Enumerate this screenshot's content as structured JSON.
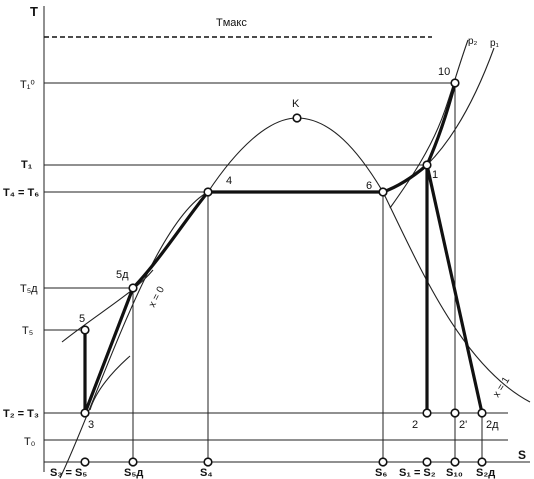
{
  "axes": {
    "y_label": "T",
    "x_label": "S",
    "t_max_label": "Tмакс"
  },
  "t_levels": {
    "t1_0": "T₁⁰",
    "t1": "T₁",
    "t4_t6": "T₄ = T₆",
    "t5d": "T₅д",
    "t5": "T₅",
    "t2_t3": "T₂ = T₃",
    "t0": "T₀"
  },
  "s_labels": {
    "s3_s5": "S₃ = S₅",
    "s5d": "S₅д",
    "s4": "S₄",
    "s6": "S₆",
    "s1_s2": "S₁ = S₂",
    "s10": "S₁₀",
    "s2d": "S₂д"
  },
  "points": {
    "p1": "1",
    "p2": "2",
    "p2prime": "2'",
    "p2d": "2д",
    "p3": "3",
    "p4": "4",
    "p5": "5",
    "p5d": "5д",
    "p6": "6",
    "p10": "10",
    "pk": "K"
  },
  "curves": {
    "x0": "x = 0",
    "x1": "x = 1",
    "p1": "p₁",
    "p2": "p₂"
  }
}
